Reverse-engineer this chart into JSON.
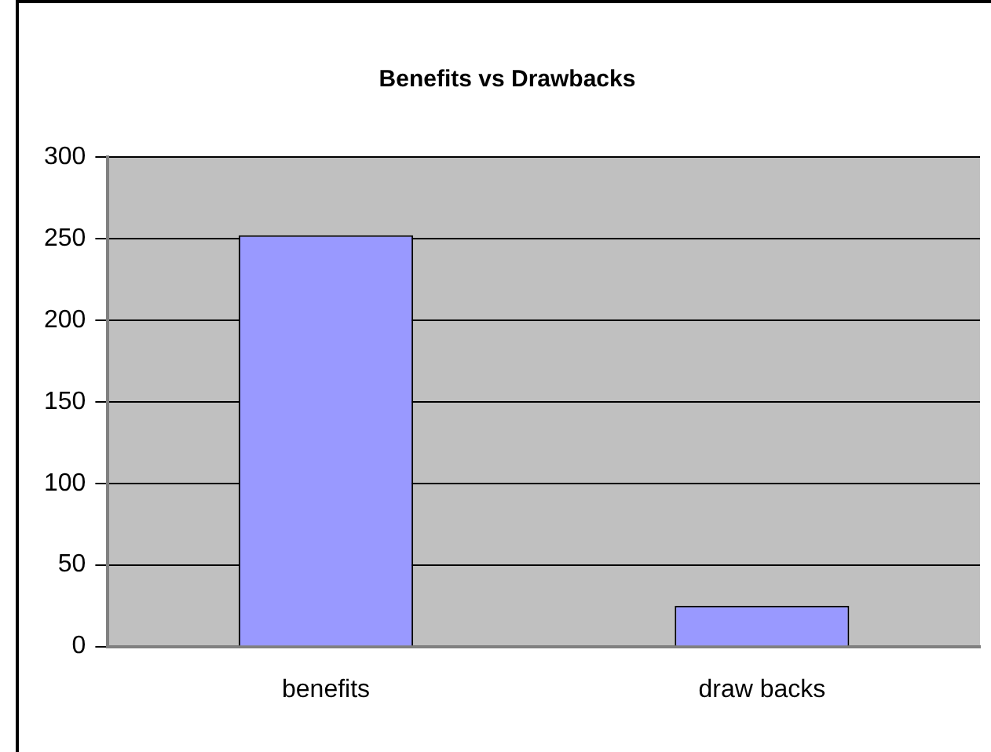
{
  "chart_data": {
    "type": "bar",
    "title": "Benefits vs Drawbacks",
    "categories": [
      "benefits",
      "draw backs"
    ],
    "values": [
      252,
      25
    ],
    "color": "#9999ff",
    "ylim": [
      0,
      300
    ],
    "yticks": [
      0,
      50,
      100,
      150,
      200,
      250,
      300
    ],
    "grid": "y",
    "legend": false
  }
}
